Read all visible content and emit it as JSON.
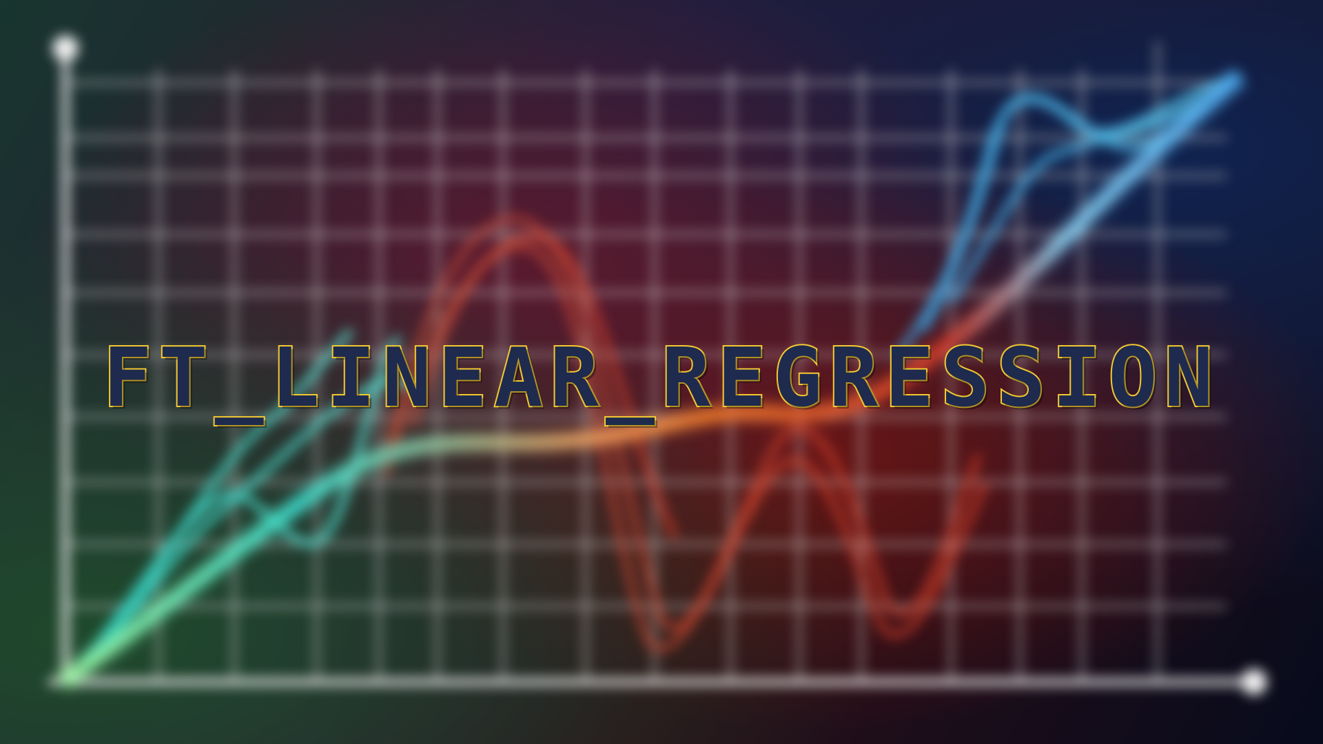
{
  "title": "FT_LINEAR_REGRESSION",
  "colors": {
    "title_fill": "#1e2b4e",
    "title_outline": "#f4c932",
    "wave_teal": "#3de0d0",
    "wave_orange": "#f07a2a",
    "wave_red": "#d23a2a",
    "wave_blue": "#4aa8f0",
    "grid": "#d8d8d8"
  },
  "background": {
    "description_icon": "blurred-chart-background",
    "style": "blurred"
  }
}
